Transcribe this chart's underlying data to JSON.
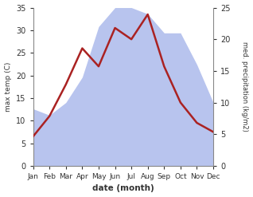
{
  "months": [
    "Jan",
    "Feb",
    "Mar",
    "Apr",
    "May",
    "Jun",
    "Jul",
    "Aug",
    "Sep",
    "Oct",
    "Nov",
    "Dec"
  ],
  "temperature": [
    6.5,
    11.0,
    18.0,
    26.0,
    22.0,
    30.5,
    28.0,
    33.5,
    22.0,
    14.0,
    9.5,
    7.5
  ],
  "precipitation": [
    9,
    8,
    10,
    14,
    22,
    25,
    25,
    24,
    21,
    21,
    16,
    10
  ],
  "temp_ylim": [
    0,
    35
  ],
  "precip_ylim": [
    0,
    25
  ],
  "temp_color": "#aa2222",
  "precip_fill_color": "#b8c4ee",
  "xlabel": "date (month)",
  "ylabel_left": "max temp (C)",
  "ylabel_right": "med. precipitation (kg/m2)",
  "temp_yticks": [
    0,
    5,
    10,
    15,
    20,
    25,
    30,
    35
  ],
  "precip_yticks": [
    0,
    5,
    10,
    15,
    20,
    25
  ],
  "background_color": "#ffffff"
}
